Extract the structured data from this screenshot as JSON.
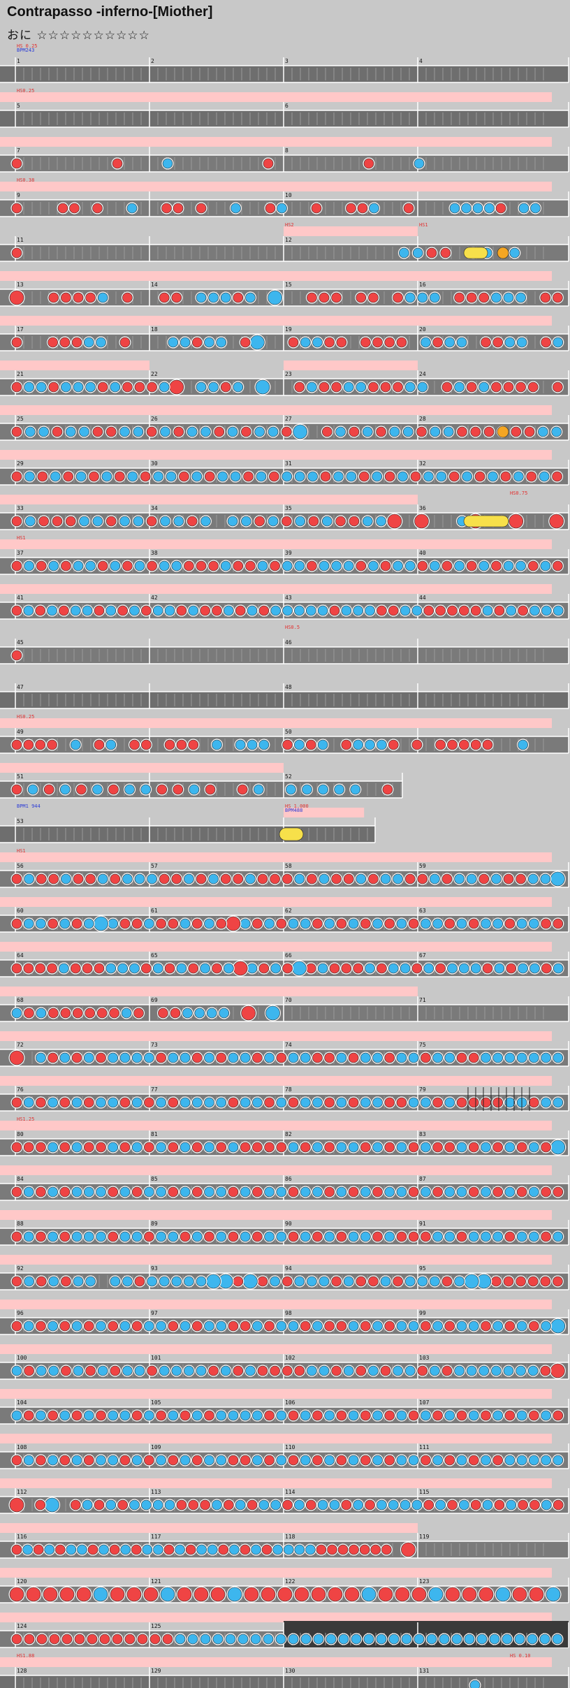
{
  "song": {
    "title": "Contrapasso -inferno-[Miother]",
    "difficulty_label": "おに",
    "stars": "☆☆☆☆☆☆☆☆☆☆"
  },
  "colors": {
    "background": "#c8c8c8",
    "lane": "#7a7a7a",
    "lane_empty": "#6e6e6e",
    "gogo": "#ffc8c8",
    "don": "#ef4444",
    "ka": "#3db6ee",
    "drumroll": "#f7e04a",
    "balloon": "#f5a623",
    "measure_line": "#ffffff",
    "label_red": "#e23030",
    "label_blue": "#2b3bd6",
    "dark_section": "#3a3a3a"
  },
  "rows": [
    {
      "measures": [
        "1",
        "2",
        "3",
        "4"
      ],
      "labels": [
        {
          "m": 0,
          "text": "HS 0.25",
          "c": "red"
        },
        {
          "m": 0,
          "text": "BPM243",
          "c": "blue",
          "l": 2
        }
      ],
      "pattern": "",
      "gogo": []
    },
    {
      "measures": [
        "5",
        "",
        "6",
        ""
      ],
      "labels": [
        {
          "m": 0,
          "text": "HS0.25",
          "c": "red"
        }
      ],
      "pattern": "",
      "gogo": [
        0,
        4
      ]
    },
    {
      "measures": [
        "7",
        "",
        "8",
        ""
      ],
      "labels": [],
      "pattern": "d.......d...k.......d.......d...k...........",
      "gogo": [
        0,
        4
      ]
    },
    {
      "measures": [
        "9",
        "",
        "10",
        ""
      ],
      "labels": [
        {
          "m": 0,
          "text": "HS0.38",
          "c": "red"
        }
      ],
      "pattern": "d...dd.d..k..dd.d..k..dk..d..ddk..d...kkkkd.kk..",
      "gogo": [
        0,
        4
      ]
    },
    {
      "measures": [
        "11",
        "",
        "12",
        ""
      ],
      "labels": [
        {
          "m": 2,
          "text": "HS2",
          "c": "red"
        },
        {
          "m": 3,
          "text": "HS1",
          "c": "red"
        }
      ],
      "pattern": "d...........................kkdd.dk.k...",
      "gogo": [
        2,
        3
      ],
      "extras": "roll_balloon"
    },
    {
      "measures": [
        "13",
        "14",
        "15",
        "16"
      ],
      "labels": [],
      "pattern": "D..ddddk.d..dd.kkkdk.K..ddd.dd.dkkk.dddkkk.dd",
      "gogo": [
        0,
        4
      ]
    },
    {
      "measures": [
        "17",
        "18",
        "19",
        "20"
      ],
      "labels": [],
      "pattern": "d..dddkk.d...kkdkk.dK..dkkdd.dddd.kdkk.ddkk.dk",
      "gogo": [
        0,
        4
      ]
    },
    {
      "measures": [
        "21",
        "22",
        "23",
        "24"
      ],
      "labels": [],
      "pattern": "dkkdkkkdkdddkD.kkdk.K..dkddkkdddkk.dkdkdddd.d",
      "gogo": [
        0,
        1
      ],
      "gogo2": [
        2,
        3
      ]
    },
    {
      "measures": [
        "25",
        "26",
        "27",
        "28"
      ],
      "labels": [],
      "pattern": "dkkdkkddkkdkdkkdkdkkdK.dkdkdkkdkkddddddkk",
      "gogo": [
        0,
        4
      ],
      "extras": "balloon_end"
    },
    {
      "measures": [
        "29",
        "30",
        "31",
        "32"
      ],
      "labels": [],
      "pattern": "dkdkdkdkdkdkkdkdkkdkdkkkdkkdkdkdkkdkdkdkdkd",
      "gogo": [
        0,
        4
      ]
    },
    {
      "measures": [
        "33",
        "34",
        "35",
        "36"
      ],
      "labels": [
        {
          "m": 3,
          "text": "HS0.75",
          "c": "red",
          "r": true
        }
      ],
      "pattern": "dkdddkkdkkdkkdk.kkdkdkdkddkkD.D..kD..D..D",
      "gogo": [
        0,
        3
      ],
      "extras": "roll_end"
    },
    {
      "measures": [
        "37",
        "38",
        "39",
        "40"
      ],
      "labels": [
        {
          "m": 0,
          "text": "HS1",
          "c": "red"
        }
      ],
      "pattern": "dkdkdkkdkdkdkkdddkddkdkkdkkkdkdkkdkdkdkdkkdkd",
      "gogo": [
        0,
        4
      ]
    },
    {
      "measures": [
        "41",
        "42",
        "43",
        "44"
      ],
      "labels": [],
      "pattern": "dkdkdkkdkdkdkkdkddkdkdkkkkkdkkkddkkdddddkdkdkkk",
      "gogo": [
        0,
        4
      ]
    },
    {
      "measures": [
        "45",
        "",
        "46",
        ""
      ],
      "labels": [
        {
          "m": 2,
          "text": "HS0.5",
          "c": "red"
        }
      ],
      "pattern": "d...............................................",
      "gogo": []
    },
    {
      "measures": [
        "47",
        "",
        "48",
        ""
      ],
      "labels": [],
      "pattern": "",
      "gogo": []
    },
    {
      "measures": [
        "49",
        "",
        "50",
        ""
      ],
      "labels": [
        {
          "m": 0,
          "text": "HS0.25",
          "c": "red"
        }
      ],
      "pattern": "dddd.k.dk.dd.ddd.k.kkk.dkdk.dkkkd.d.ddddd..k...",
      "gogo": [
        0,
        4
      ]
    },
    {
      "measures": [
        "51",
        "",
        "52",
        ""
      ],
      "labels": [],
      "pattern": "dkdkdkdkkddkd.dk.kkkkk.d",
      "gogo": [
        0,
        2
      ],
      "short": 0.7
    },
    {
      "measures": [
        "53",
        "",
        "",
        ""
      ],
      "labels": [
        {
          "m": 0,
          "text": "BPM1 944",
          "c": "blue"
        },
        {
          "m": 2,
          "text": "HS 1.000",
          "c": "red"
        },
        {
          "m": 2,
          "text": "BPM488",
          "c": "blue",
          "l": 2
        }
      ],
      "pattern": "",
      "gogo": [
        2,
        2.6
      ],
      "short": 0.65,
      "extras": "roll53"
    },
    {
      "measures": [
        "56",
        "57",
        "58",
        "59"
      ],
      "labels": [
        {
          "m": 0,
          "text": "HS1",
          "c": "red"
        }
      ],
      "pattern": "dkddkddkdkkkddkdkddkdddkdkddkdkkddkdkkdkddkkK",
      "gogo": [
        0,
        4
      ]
    },
    {
      "measures": [
        "60",
        "61",
        "62",
        "63"
      ],
      "labels": [],
      "pattern": "dkkdkdkKkddkddkdkdDkdkdkkdkdkdkdkdkkdkdkkdkkdd",
      "gogo": [
        0,
        4
      ]
    },
    {
      "measures": [
        "64",
        "65",
        "66",
        "67"
      ],
      "labels": [],
      "pattern": "ddddkdddkkkdkdkdkdkDkdkdKdkdddkdkkdkdkkkdkdkkdk",
      "gogo": [
        0,
        4
      ]
    },
    {
      "measures": [
        "68",
        "69",
        "70",
        "71"
      ],
      "labels": [],
      "pattern": "kdkddddddkd.ddkkkk.D.K",
      "gogo": [
        0,
        2
      ],
      "gogo2": [
        2,
        3
      ],
      "half": true
    },
    {
      "measures": [
        "72",
        "73",
        "74",
        "75"
      ],
      "labels": [],
      "pattern": "D.kdkdkdkkkkdkkdkdkkdkdkkddkdkkdkkdkkddkkkkkkk",
      "gogo": [
        0,
        4
      ]
    },
    {
      "measures": [
        "76",
        "77",
        "78",
        "79"
      ],
      "labels": [],
      "pattern": "dkdkdkdkkdkdkdkkkkdkkdkdkkdkdkkddkkdkddddkkdkk",
      "gogo": [
        0,
        4
      ],
      "extras": "speedmarks"
    },
    {
      "measures": [
        "80",
        "81",
        "82",
        "83"
      ],
      "labels": [
        {
          "m": 0,
          "text": "HS1.25",
          "c": "red"
        }
      ],
      "pattern": "dddkdkddkdkdkdkdkdkddddkdkdkkdkdkdkddkdkdkdkdK",
      "gogo": [
        0,
        4
      ]
    },
    {
      "measures": [
        "84",
        "85",
        "86",
        "87"
      ],
      "labels": [],
      "pattern": "dkdkdkkkdkdkkdkdkkdkdkkdkkdkdkdkkdkdkkdkdkdkdd",
      "gogo": [
        0,
        4
      ]
    },
    {
      "measures": [
        "88",
        "89",
        "90",
        "91"
      ],
      "labels": [],
      "pattern": "dkdkdkkkdkkdkkdkdkdkdkkdkdkdkkdkdddkkdkkkdkkdk",
      "gogo": [
        0,
        4
      ]
    },
    {
      "measures": [
        "92",
        "93",
        "94",
        "95"
      ],
      "labels": [],
      "pattern": "dkdkdkk.kkdkkkkkKKdKdkdkkkdkddkdkkkdkKKdddddd",
      "gogo": [
        0,
        4
      ]
    },
    {
      "measures": [
        "96",
        "97",
        "98",
        "99"
      ],
      "labels": [],
      "pattern": "dkdkdkdkdkdkkdkdkkddkdkkdkddkdkdkkdkdkkdkdkdkK",
      "gogo": [
        0,
        4
      ]
    },
    {
      "measures": [
        "100",
        "101",
        "102",
        "103"
      ],
      "labels": [],
      "pattern": "kdkkdkdkdkkdkkkkdkdkddddkkdkdkdkkdkdkkkkkkkdD",
      "gogo": [
        0,
        4
      ]
    },
    {
      "measures": [
        "104",
        "105",
        "106",
        "107"
      ],
      "labels": [],
      "pattern": "kdkdkdkdkkdkdkdkdkkkkdkdkdkdkdkdkdkdkdkdkdkdkd",
      "gogo": [
        0,
        4
      ]
    },
    {
      "measures": [
        "108",
        "109",
        "110",
        "111"
      ],
      "labels": [],
      "pattern": "dkdkdkdkkdkdkdkdkkddkdkdkdkdkdkdkkdkdkdkdkkkkk",
      "gogo": [
        0,
        4
      ]
    },
    {
      "measures": [
        "112",
        "113",
        "114",
        "115"
      ],
      "labels": [],
      "pattern": "D.dK.dkdkdkkkkdddkdkdkkdkdkkdkdkkkkdkdkdkdkddkd",
      "gogo": [
        0,
        4
      ]
    },
    {
      "measures": [
        "116",
        "117",
        "118",
        "119"
      ],
      "labels": [],
      "pattern": "dkdkdkkdkdkdkkdkdkkdkdkdkkkkddddddd.D",
      "gogo": [
        0,
        3
      ],
      "half2": true
    },
    {
      "measures": [
        "120",
        "121",
        "122",
        "123"
      ],
      "labels": [],
      "pattern": "DDDDDKDDDKDDDKDDDDDDDKDDDKDDDKDDK",
      "gogo": [
        0,
        4
      ]
    },
    {
      "measures": [
        "124",
        "125",
        "",
        ""
      ],
      "labels": [],
      "pattern": "dddddddddddddkkkkkkkkkkkkkkkkkkkkkkkkkkkkkkk",
      "gogo": [
        0,
        4
      ],
      "extras": "dark"
    },
    {
      "measures": [
        "128",
        "129",
        "130",
        "131"
      ],
      "labels": [
        {
          "m": 0,
          "text": "HS1.88",
          "c": "red"
        },
        {
          "m": 3,
          "text": "HS 0.10",
          "c": "red",
          "r": true
        }
      ],
      "pattern": "",
      "gogo": [
        0,
        4
      ],
      "extras": "last"
    }
  ]
}
